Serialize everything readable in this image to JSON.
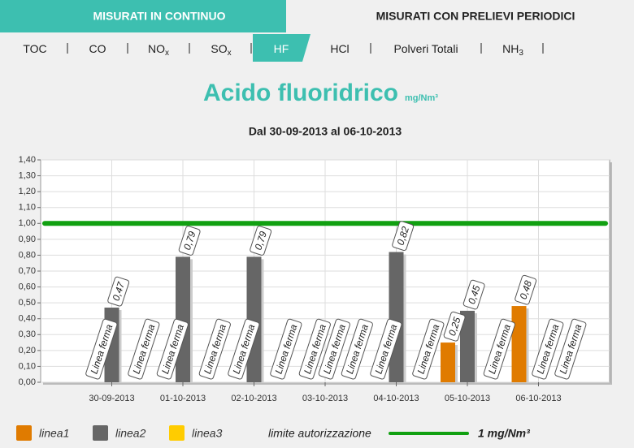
{
  "tabs": [
    "MISURATI IN CONTINUO",
    "MISURATI CON PRELIEVI PERIODICI"
  ],
  "subtabs": [
    {
      "text": "TOC"
    },
    {
      "text": "CO"
    },
    {
      "text": "NO",
      "sub": "x"
    },
    {
      "text": "SO",
      "sub": "x"
    },
    {
      "text": "HF"
    },
    {
      "text": "HCl"
    },
    {
      "text": "Polveri Totali"
    },
    {
      "text": "NH",
      "sub": "3"
    }
  ],
  "chart_data": {
    "type": "bar",
    "title": "Acido fluoridrico",
    "units": "mg/Nm³",
    "subtitle": "Dal 30-09-2013 al 06-10-2013",
    "categories": [
      "30-09-2013",
      "01-10-2013",
      "02-10-2013",
      "03-10-2013",
      "04-10-2013",
      "05-10-2013",
      "06-10-2013"
    ],
    "series": [
      {
        "name": "linea1",
        "color": "#e07b00",
        "values": [
          null,
          null,
          null,
          null,
          null,
          0.25,
          0.48
        ],
        "value_labels": [
          "Linea ferma",
          "Linea ferma",
          "Linea ferma",
          "Linea ferma",
          "Linea ferma",
          "0,25",
          "0,48"
        ]
      },
      {
        "name": "linea2",
        "color": "#666666",
        "values": [
          0.47,
          0.79,
          0.79,
          null,
          0.82,
          0.45,
          null
        ],
        "value_labels": [
          "0,47",
          "0,79",
          "0,79",
          "Linea ferma",
          "0,82",
          "0,45",
          "Linea ferma"
        ]
      },
      {
        "name": "linea3",
        "color": "#ffcc00",
        "values": [
          null,
          null,
          null,
          null,
          null,
          null,
          null
        ],
        "value_labels": [
          "Linea ferma",
          "Linea ferma",
          "Linea ferma",
          "Linea ferma",
          "Linea ferma",
          "Linea ferma",
          "Linea ferma"
        ]
      }
    ],
    "limit_name": "limite autorizzazione",
    "limit_value": 1,
    "limit_label": "1 mg/Nm³",
    "limit_color": "#11a011",
    "ylim": [
      0,
      1.4
    ],
    "yticks": [
      {
        "value": 0,
        "label": "0,00"
      },
      {
        "value": 0.1,
        "label": "0,10"
      },
      {
        "value": 0.2,
        "label": "0,20"
      },
      {
        "value": 0.3,
        "label": "0,30"
      },
      {
        "value": 0.4,
        "label": "0,40"
      },
      {
        "value": 0.5,
        "label": "0,50"
      },
      {
        "value": 0.6,
        "label": "0,60"
      },
      {
        "value": 0.7,
        "label": "0,70"
      },
      {
        "value": 0.8,
        "label": "0,80"
      },
      {
        "value": 0.9,
        "label": "0,90"
      },
      {
        "value": 1,
        "label": "1,00"
      },
      {
        "value": 1.1,
        "label": "1,10"
      },
      {
        "value": 1.2,
        "label": "1,20"
      },
      {
        "value": 1.3,
        "label": "1,30"
      },
      {
        "value": 1.4,
        "label": "1,40"
      }
    ],
    "grid": true,
    "active_subtab": 4
  }
}
